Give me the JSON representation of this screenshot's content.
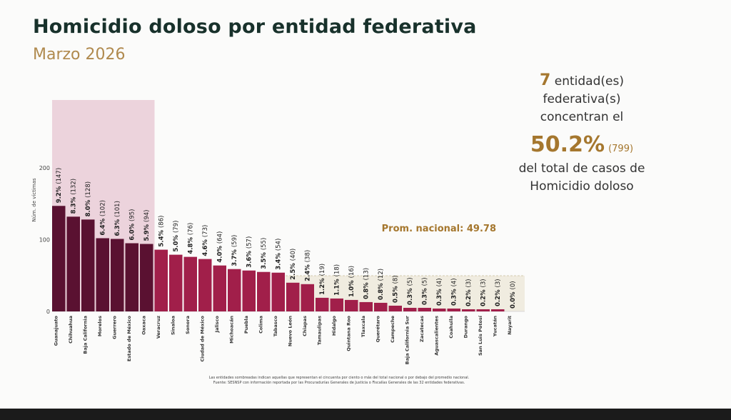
{
  "title": "Homicidio doloso por entidad federativa",
  "subtitle": "Marzo 2026",
  "summary": {
    "count": "7",
    "line1": "entidad(es) federativa(s)",
    "line2": "concentran el",
    "percent": "50.2%",
    "cases": "(799)",
    "line3": "del total de casos de",
    "line4": "Homicidio doloso"
  },
  "average_label": "Prom. nacional: 49.78",
  "footnote_1": "Las entidades sombreadas indican aquellas que representan el cincuenta por ciento o más del total nacional o por debajo del promedio nacional.",
  "footnote_2": "Fuente: SESNSP con información reportada por las Procuradurías Generales de Justicia o Fiscalías Generales de las 32 entidades federativas.",
  "colors": {
    "top_bar": "#5a1131",
    "other_bar": "#a11f4a",
    "top_band": "#ecd3dc",
    "below_avg_band": "#f0ece0",
    "accent": "#a5772e",
    "title": "#18312b"
  },
  "chart_data": {
    "type": "bar",
    "ylabel": "Núm. de víctimas",
    "ylim": [
      0,
      250
    ],
    "yticks": [
      0,
      100,
      200
    ],
    "national_average": 49.78,
    "top_group_count": 7,
    "categories": [
      "Guanajuato",
      "Chihuahua",
      "Baja California",
      "Morelos",
      "Guerrero",
      "Estado de México",
      "Oaxaca",
      "Veracruz",
      "Sinaloa",
      "Sonora",
      "Ciudad de México",
      "Jalisco",
      "Michoacán",
      "Puebla",
      "Colima",
      "Tabasco",
      "Nuevo León",
      "Chiapas",
      "Tamaulipas",
      "Hidalgo",
      "Quintana Roo",
      "Tlaxcala",
      "Querétaro",
      "Campeche",
      "Baja California Sur",
      "Zacatecas",
      "Aguascalientes",
      "Coahuila",
      "Durango",
      "San Luis Potosí",
      "Yucatán",
      "Nayarit"
    ],
    "values": [
      147,
      132,
      128,
      102,
      101,
      95,
      94,
      86,
      79,
      76,
      73,
      64,
      59,
      57,
      55,
      54,
      40,
      38,
      19,
      18,
      16,
      13,
      12,
      8,
      5,
      5,
      4,
      4,
      3,
      3,
      3,
      0
    ],
    "data_labels": [
      "9.2% (147)",
      "8.3% (132)",
      "8.0% (128)",
      "6.4% (102)",
      "6.3% (101)",
      "6.0% (95)",
      "5.9% (94)",
      "5.4% (86)",
      "5.0% (79)",
      "4.8% (76)",
      "4.6% (73)",
      "4.0% (64)",
      "3.7% (59)",
      "3.6% (57)",
      "3.5% (55)",
      "3.4% (54)",
      "2.5% (40)",
      "2.4% (38)",
      "1.2% (19)",
      "1.1% (18)",
      "1.0% (16)",
      "0.8% (13)",
      "0.8% (12)",
      "0.5% (8)",
      "0.3% (5)",
      "0.3% (5)",
      "0.3% (4)",
      "0.3% (4)",
      "0.2% (3)",
      "0.2% (3)",
      "0.2% (3)",
      "0.0% (0)"
    ]
  }
}
